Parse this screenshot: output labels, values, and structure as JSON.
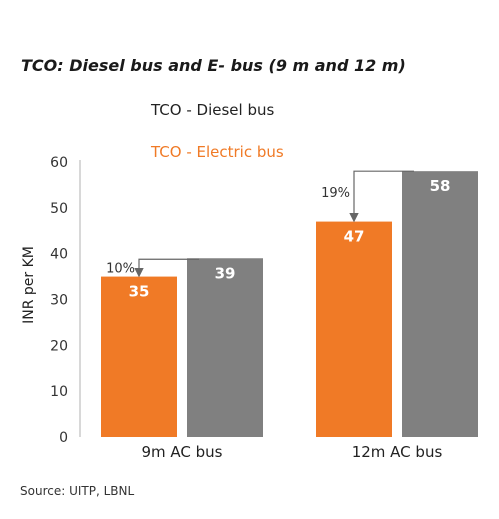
{
  "chart_data": {
    "type": "bar",
    "title": "TCO: Diesel bus and E- bus (9 m and 12 m)",
    "ylabel": "INR per KM",
    "xlabel": "",
    "ylim": [
      0,
      60
    ],
    "yticks": [
      "0",
      "10",
      "20",
      "30",
      "40",
      "50",
      "60"
    ],
    "categories": [
      "9m AC bus",
      "12m AC bus"
    ],
    "series": [
      {
        "name": "TCO - Electric bus",
        "values": [
          35,
          47
        ],
        "color": "#f07a26"
      },
      {
        "name": "TCO - Diesel bus",
        "values": [
          39,
          58
        ],
        "color": "#808080"
      }
    ],
    "annotations": [
      "10%",
      "19%"
    ],
    "legend_position": "top"
  },
  "legend": {
    "diesel": "TCO - Diesel bus",
    "electric": "TCO - Electric bus"
  },
  "source": "Source: UITP, LBNL"
}
